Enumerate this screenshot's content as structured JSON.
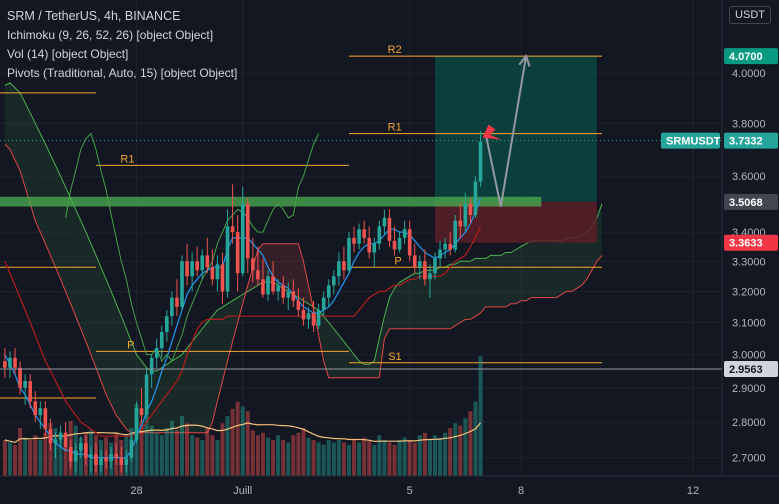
{
  "legend": {
    "title": "SRM / TetherUS, 4h, BINANCE",
    "ichimoku": "Ichimoku (9, 26, 52, 26) [object Object]",
    "vol": "Vol (14) [object Object]",
    "pivots": "Pivots (Traditional, Auto, 15) [object Object]"
  },
  "currency_button": "USDT",
  "colors": {
    "background": "#131722",
    "bull": "#26a69a",
    "bear": "#ef5350",
    "pivot": "#f7a531",
    "support_zone": "#4caf50",
    "target_zone": "#0b4d45",
    "stop_zone": "#5a1f27",
    "arrow": "#9598a1",
    "marker": "#f23645",
    "current_price_tag": "#26a69a",
    "target_tag": "#089981",
    "stop_tag": "#f23645"
  },
  "chart_data": {
    "type": "candlestick",
    "symbol": "SRMUSDT",
    "timeframe": "4h",
    "exchange": "BINANCE",
    "ylim": [
      2.65,
      4.18
    ],
    "y_ticks": [
      "4.0000",
      "3.8000",
      "3.6000",
      "3.4000",
      "3.3000",
      "3.2000",
      "3.1000",
      "3.0000",
      "2.9000",
      "2.8000",
      "2.7000"
    ],
    "x_ticks": [
      {
        "label": "28",
        "bar": 26
      },
      {
        "label": "Juill",
        "bar": 47
      },
      {
        "label": "5",
        "bar": 80
      },
      {
        "label": "8",
        "bar": 102
      },
      {
        "label": "12",
        "bar": 136
      }
    ],
    "last_bar": 94,
    "candles": [
      [
        2.98,
        3.02,
        2.93,
        2.96
      ],
      [
        2.96,
        3.01,
        2.93,
        2.99
      ],
      [
        2.99,
        3.02,
        2.94,
        2.96
      ],
      [
        2.96,
        2.98,
        2.88,
        2.9
      ],
      [
        2.9,
        2.94,
        2.85,
        2.92
      ],
      [
        2.92,
        2.94,
        2.84,
        2.86
      ],
      [
        2.86,
        2.89,
        2.8,
        2.82
      ],
      [
        2.82,
        2.86,
        2.78,
        2.84
      ],
      [
        2.84,
        2.86,
        2.76,
        2.78
      ],
      [
        2.78,
        2.81,
        2.72,
        2.74
      ],
      [
        2.74,
        2.77,
        2.7,
        2.75
      ],
      [
        2.75,
        2.79,
        2.73,
        2.77
      ],
      [
        2.77,
        2.8,
        2.72,
        2.73
      ],
      [
        2.73,
        2.75,
        2.67,
        2.69
      ],
      [
        2.69,
        2.74,
        2.66,
        2.72
      ],
      [
        2.72,
        2.76,
        2.7,
        2.74
      ],
      [
        2.74,
        2.76,
        2.68,
        2.7
      ],
      [
        2.7,
        2.73,
        2.66,
        2.71
      ],
      [
        2.71,
        2.74,
        2.66,
        2.68
      ],
      [
        2.68,
        2.72,
        2.66,
        2.7
      ],
      [
        2.7,
        2.72,
        2.67,
        2.69
      ],
      [
        2.69,
        2.73,
        2.67,
        2.71
      ],
      [
        2.71,
        2.74,
        2.68,
        2.7
      ],
      [
        2.7,
        2.73,
        2.66,
        2.68
      ],
      [
        2.68,
        2.72,
        2.66,
        2.7
      ],
      [
        2.7,
        2.77,
        2.69,
        2.75
      ],
      [
        2.75,
        2.86,
        2.74,
        2.84
      ],
      [
        2.84,
        2.9,
        2.8,
        2.82
      ],
      [
        2.82,
        2.96,
        2.81,
        2.94
      ],
      [
        2.94,
        3.0,
        2.9,
        2.99
      ],
      [
        2.99,
        3.05,
        2.96,
        3.02
      ],
      [
        3.02,
        3.09,
        2.99,
        3.07
      ],
      [
        3.07,
        3.14,
        3.04,
        3.12
      ],
      [
        3.12,
        3.2,
        3.09,
        3.18
      ],
      [
        3.18,
        3.24,
        3.12,
        3.15
      ],
      [
        3.15,
        3.32,
        3.14,
        3.3
      ],
      [
        3.3,
        3.36,
        3.22,
        3.25
      ],
      [
        3.25,
        3.33,
        3.2,
        3.3
      ],
      [
        3.3,
        3.35,
        3.25,
        3.27
      ],
      [
        3.27,
        3.34,
        3.24,
        3.32
      ],
      [
        3.32,
        3.38,
        3.26,
        3.28
      ],
      [
        3.28,
        3.34,
        3.22,
        3.24
      ],
      [
        3.24,
        3.32,
        3.2,
        3.29
      ],
      [
        3.29,
        3.33,
        3.16,
        3.2
      ],
      [
        3.2,
        3.48,
        3.18,
        3.42
      ],
      [
        3.42,
        3.57,
        3.36,
        3.4
      ],
      [
        3.4,
        3.46,
        3.2,
        3.26
      ],
      [
        3.26,
        3.56,
        3.25,
        3.5
      ],
      [
        3.5,
        3.52,
        3.26,
        3.31
      ],
      [
        3.31,
        3.38,
        3.23,
        3.27
      ],
      [
        3.27,
        3.35,
        3.22,
        3.24
      ],
      [
        3.24,
        3.31,
        3.18,
        3.19
      ],
      [
        3.19,
        3.27,
        3.17,
        3.25
      ],
      [
        3.25,
        3.3,
        3.19,
        3.2
      ],
      [
        3.2,
        3.24,
        3.17,
        3.22
      ],
      [
        3.22,
        3.25,
        3.16,
        3.18
      ],
      [
        3.18,
        3.23,
        3.14,
        3.2
      ],
      [
        3.2,
        3.24,
        3.15,
        3.17
      ],
      [
        3.17,
        3.21,
        3.12,
        3.14
      ],
      [
        3.14,
        3.18,
        3.09,
        3.11
      ],
      [
        3.11,
        3.15,
        3.08,
        3.13
      ],
      [
        3.13,
        3.17,
        3.07,
        3.09
      ],
      [
        3.09,
        3.16,
        3.08,
        3.14
      ],
      [
        3.14,
        3.2,
        3.12,
        3.18
      ],
      [
        3.18,
        3.24,
        3.15,
        3.22
      ],
      [
        3.22,
        3.27,
        3.19,
        3.25
      ],
      [
        3.25,
        3.33,
        3.22,
        3.3
      ],
      [
        3.3,
        3.35,
        3.24,
        3.27
      ],
      [
        3.27,
        3.4,
        3.26,
        3.38
      ],
      [
        3.38,
        3.42,
        3.33,
        3.36
      ],
      [
        3.36,
        3.43,
        3.34,
        3.41
      ],
      [
        3.41,
        3.44,
        3.36,
        3.38
      ],
      [
        3.38,
        3.42,
        3.31,
        3.33
      ],
      [
        3.33,
        3.38,
        3.28,
        3.36
      ],
      [
        3.36,
        3.44,
        3.34,
        3.42
      ],
      [
        3.42,
        3.48,
        3.39,
        3.45
      ],
      [
        3.45,
        3.48,
        3.35,
        3.37
      ],
      [
        3.37,
        3.42,
        3.32,
        3.34
      ],
      [
        3.34,
        3.4,
        3.33,
        3.38
      ],
      [
        3.38,
        3.44,
        3.36,
        3.41
      ],
      [
        3.41,
        3.44,
        3.3,
        3.32
      ],
      [
        3.32,
        3.36,
        3.26,
        3.28
      ],
      [
        3.28,
        3.32,
        3.24,
        3.3
      ],
      [
        3.3,
        3.34,
        3.22,
        3.24
      ],
      [
        3.24,
        3.29,
        3.18,
        3.26
      ],
      [
        3.26,
        3.33,
        3.24,
        3.31
      ],
      [
        3.31,
        3.37,
        3.28,
        3.34
      ],
      [
        3.34,
        3.38,
        3.31,
        3.36
      ],
      [
        3.36,
        3.4,
        3.32,
        3.34
      ],
      [
        3.34,
        3.46,
        3.33,
        3.44
      ],
      [
        3.44,
        3.5,
        3.38,
        3.42
      ],
      [
        3.42,
        3.54,
        3.4,
        3.5
      ],
      [
        3.5,
        3.52,
        3.43,
        3.46
      ],
      [
        3.46,
        3.6,
        3.45,
        3.58
      ],
      [
        3.58,
        3.77,
        3.56,
        3.73
      ]
    ],
    "volume": [
      0.3,
      0.28,
      0.26,
      0.4,
      0.32,
      0.3,
      0.34,
      0.3,
      0.36,
      0.44,
      0.4,
      0.3,
      0.34,
      0.46,
      0.42,
      0.32,
      0.36,
      0.38,
      0.34,
      0.3,
      0.32,
      0.28,
      0.36,
      0.3,
      0.34,
      0.4,
      0.6,
      0.46,
      0.5,
      0.42,
      0.36,
      0.34,
      0.4,
      0.46,
      0.38,
      0.5,
      0.44,
      0.34,
      0.32,
      0.3,
      0.4,
      0.34,
      0.3,
      0.44,
      0.5,
      0.56,
      0.62,
      0.58,
      0.54,
      0.38,
      0.34,
      0.36,
      0.32,
      0.3,
      0.34,
      0.3,
      0.28,
      0.34,
      0.36,
      0.4,
      0.32,
      0.3,
      0.28,
      0.26,
      0.3,
      0.28,
      0.3,
      0.28,
      0.26,
      0.3,
      0.28,
      0.32,
      0.3,
      0.26,
      0.34,
      0.3,
      0.28,
      0.26,
      0.3,
      0.32,
      0.3,
      0.28,
      0.34,
      0.36,
      0.3,
      0.34,
      0.32,
      0.36,
      0.4,
      0.44,
      0.42,
      0.48,
      0.54,
      0.62,
      1.0
    ],
    "pivot_levels": [
      {
        "label": "R2",
        "value": 4.07,
        "x_start": 68,
        "x_end": 118
      },
      {
        "label": "R1",
        "value": 3.76,
        "x_start": 68,
        "x_end": 118
      },
      {
        "label": "R1",
        "value": 3.64,
        "x_start": 18,
        "x_end": 68
      },
      {
        "label": "P",
        "value": 3.28,
        "x_start": 68,
        "x_end": 118
      },
      {
        "label": "P",
        "value": 3.01,
        "x_start": 18,
        "x_end": 68
      },
      {
        "label": "S1",
        "value": 2.975,
        "x_start": 68,
        "x_end": 118
      },
      {
        "label": "",
        "value": 3.92,
        "x_start": -1,
        "x_end": 18
      },
      {
        "label": "",
        "value": 3.28,
        "x_start": -1,
        "x_end": 18
      },
      {
        "label": "",
        "value": 2.87,
        "x_start": -1,
        "x_end": 18
      }
    ],
    "support_zone": {
      "low": 3.49,
      "high": 3.525,
      "x_start": -1,
      "x_end": 106
    },
    "position": {
      "entry": 3.5068,
      "target": 4.07,
      "stop": 3.3633,
      "x_start": 85,
      "x_end": 117
    },
    "projection_arrow": [
      {
        "bar": 95,
        "value": 3.76
      },
      {
        "bar": 98,
        "value": 3.49
      },
      {
        "bar": 103,
        "value": 4.07
      }
    ],
    "price_tags": [
      {
        "label": "4.0700",
        "value": 4.07,
        "kind": "target"
      },
      {
        "label": "SRMUSDT",
        "value": 3.7332,
        "kind": "symbol"
      },
      {
        "label": "3.7332",
        "value": 3.7332,
        "kind": "current"
      },
      {
        "label": "3.5068",
        "value": 3.5068,
        "kind": "entry"
      },
      {
        "label": "3.3633",
        "value": 3.3633,
        "kind": "stop"
      },
      {
        "label": "2.9563",
        "value": 2.9563,
        "kind": "level"
      }
    ],
    "ichimoku": {
      "tenkan": [
        3.0,
        2.97,
        2.94,
        2.9,
        2.88,
        2.85,
        2.82,
        2.8,
        2.78,
        2.76,
        2.74,
        2.73,
        2.72,
        2.72,
        2.71,
        2.71,
        2.71,
        2.7,
        2.7,
        2.7,
        2.7,
        2.7,
        2.7,
        2.7,
        2.7,
        2.72,
        2.76,
        2.79,
        2.83,
        2.86,
        2.9,
        2.95,
        2.99,
        3.04,
        3.09,
        3.14,
        3.19,
        3.22,
        3.24,
        3.26,
        3.27,
        3.28,
        3.28,
        3.28,
        3.34,
        3.38,
        3.38,
        3.38,
        3.38,
        3.36,
        3.34,
        3.32,
        3.28,
        3.25,
        3.23,
        3.22,
        3.21,
        3.19,
        3.17,
        3.15,
        3.14,
        3.13,
        3.13,
        3.14,
        3.15,
        3.17,
        3.2,
        3.23,
        3.26,
        3.3,
        3.33,
        3.35,
        3.36,
        3.36,
        3.37,
        3.39,
        3.41,
        3.41,
        3.4,
        3.4,
        3.39,
        3.37,
        3.35,
        3.33,
        3.32,
        3.31,
        3.32,
        3.33,
        3.34,
        3.36,
        3.38,
        3.4,
        3.43,
        3.47,
        3.52
      ],
      "kijun": [
        3.3,
        3.26,
        3.22,
        3.18,
        3.14,
        3.1,
        3.06,
        3.02,
        2.98,
        2.95,
        2.92,
        2.89,
        2.86,
        2.84,
        2.82,
        2.8,
        2.79,
        2.78,
        2.77,
        2.76,
        2.76,
        2.76,
        2.76,
        2.76,
        2.76,
        2.76,
        2.77,
        2.78,
        2.8,
        2.82,
        2.84,
        2.86,
        2.88,
        2.9,
        2.92,
        2.95,
        3.0,
        3.04,
        3.08,
        3.1,
        3.11,
        3.11,
        3.11,
        3.11,
        3.12,
        3.12,
        3.12,
        3.12,
        3.12,
        3.12,
        3.12,
        3.12,
        3.12,
        3.12,
        3.12,
        3.12,
        3.12,
        3.12,
        3.12,
        3.12,
        3.12,
        3.12,
        3.12,
        3.12,
        3.12,
        3.12,
        3.12,
        3.12,
        3.12,
        3.12,
        3.14,
        3.16,
        3.18,
        3.19,
        3.2,
        3.2,
        3.21,
        3.22,
        3.22,
        3.23,
        3.24,
        3.24,
        3.25,
        3.25,
        3.25,
        3.25,
        3.25,
        3.26,
        3.28,
        3.3,
        3.31,
        3.32,
        3.35,
        3.38,
        3.42
      ],
      "chikou": [
        3.45,
        3.55,
        3.62,
        3.7,
        3.74,
        3.76,
        3.7,
        3.62,
        3.55,
        3.46,
        3.38,
        3.3,
        3.24,
        3.16,
        3.1,
        3.05,
        3.0,
        3.0,
        3.02,
        2.98,
        3.0,
        2.98,
        3.02,
        3.06,
        3.12,
        3.16,
        3.2,
        3.24,
        3.27,
        3.3,
        3.36,
        3.4,
        3.44,
        3.46,
        3.48,
        3.47,
        3.45,
        3.42,
        3.4,
        3.4,
        3.44,
        3.48,
        3.5,
        3.48,
        3.45,
        3.46,
        3.56,
        3.6,
        3.66,
        3.72,
        3.76
      ]
    },
    "cloud": {
      "start_bar": 0,
      "span_a": [
        3.95,
        3.96,
        3.94,
        3.92,
        3.88,
        3.84,
        3.8,
        3.76,
        3.72,
        3.68,
        3.64,
        3.6,
        3.56,
        3.52,
        3.48,
        3.44,
        3.4,
        3.36,
        3.32,
        3.28,
        3.24,
        3.2,
        3.16,
        3.12,
        3.08,
        3.04,
        3.0,
        2.98,
        2.96,
        2.95,
        2.95,
        2.96,
        2.97,
        2.98,
        2.99,
        3.0,
        3.02,
        3.04,
        3.06,
        3.08,
        3.1,
        3.12,
        3.14,
        3.15,
        3.16,
        3.17,
        3.18,
        3.19,
        3.2,
        3.21,
        3.22,
        3.23,
        3.23,
        3.23,
        3.22,
        3.21,
        3.2,
        3.19,
        3.18,
        3.17,
        3.16,
        3.15,
        3.14,
        3.12,
        3.1,
        3.08,
        3.06,
        3.04,
        3.02,
        3.0,
        2.98,
        2.97,
        2.97,
        2.98,
        3.05,
        3.12,
        3.18,
        3.21,
        3.23,
        3.24,
        3.25,
        3.26,
        3.26,
        3.27,
        3.27,
        3.27,
        3.28,
        3.28,
        3.29,
        3.29,
        3.3,
        3.3,
        3.3,
        3.31,
        3.31,
        3.31,
        3.32,
        3.32,
        3.32,
        3.33,
        3.33,
        3.34,
        3.35,
        3.36,
        3.37,
        3.37,
        3.37,
        3.37,
        3.37,
        3.37,
        3.37,
        3.38,
        3.38,
        3.38,
        3.39,
        3.4,
        3.42,
        3.45,
        3.5
      ],
      "span_b": [
        3.72,
        3.7,
        3.66,
        3.62,
        3.56,
        3.5,
        3.44,
        3.4,
        3.36,
        3.32,
        3.28,
        3.24,
        3.2,
        3.16,
        3.12,
        3.08,
        3.04,
        3.0,
        2.96,
        2.92,
        2.88,
        2.85,
        2.82,
        2.8,
        2.78,
        2.77,
        2.77,
        2.77,
        2.77,
        2.77,
        2.77,
        2.77,
        2.77,
        2.77,
        2.77,
        2.77,
        2.77,
        2.77,
        2.77,
        2.77,
        2.77,
        2.8,
        2.86,
        2.92,
        2.98,
        3.04,
        3.1,
        3.16,
        3.22,
        3.28,
        3.34,
        3.36,
        3.36,
        3.36,
        3.36,
        3.36,
        3.36,
        3.36,
        3.36,
        3.3,
        3.22,
        3.14,
        3.06,
        2.98,
        2.93,
        2.93,
        2.93,
        2.93,
        2.93,
        2.93,
        2.93,
        2.93,
        2.93,
        2.93,
        2.93,
        3.05,
        3.08,
        3.08,
        3.08,
        3.08,
        3.08,
        3.08,
        3.08,
        3.08,
        3.08,
        3.08,
        3.08,
        3.08,
        3.08,
        3.09,
        3.1,
        3.11,
        3.11,
        3.12,
        3.13,
        3.15,
        3.15,
        3.15,
        3.15,
        3.15,
        3.16,
        3.16,
        3.17,
        3.17,
        3.18,
        3.18,
        3.18,
        3.18,
        3.18,
        3.18,
        3.19,
        3.2,
        3.2,
        3.21,
        3.22,
        3.24,
        3.27,
        3.3,
        3.32
      ]
    }
  }
}
